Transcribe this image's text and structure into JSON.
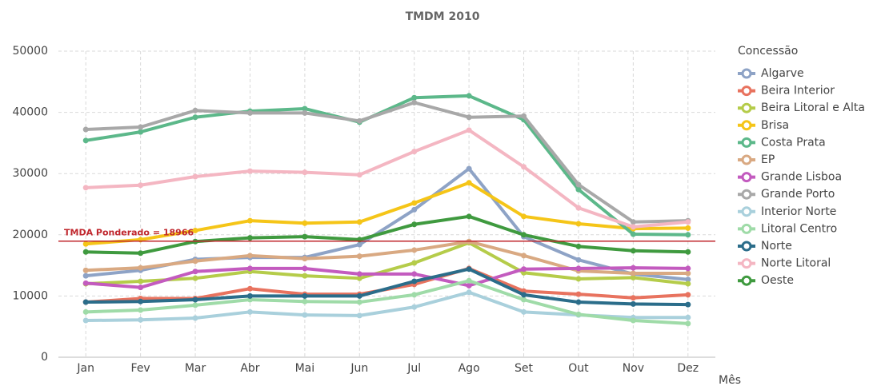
{
  "chart_data": {
    "type": "line",
    "title": "TMDM 2010",
    "x_label": "Mês",
    "legend_title": "Concessão",
    "categories": [
      "Jan",
      "Fev",
      "Mar",
      "Abr",
      "Mai",
      "Jun",
      "Jul",
      "Ago",
      "Set",
      "Out",
      "Nov",
      "Dez"
    ],
    "ylim": [
      0,
      50000
    ],
    "yticks": [
      0,
      10000,
      20000,
      30000,
      40000,
      50000
    ],
    "grid": true,
    "legend": "right",
    "reference": {
      "value": 18966,
      "label": "TMDA Ponderado = 18966",
      "color": "#c0272d"
    },
    "series": [
      {
        "name": "Algarve",
        "color": "#8ea3c6",
        "values": [
          13300,
          14200,
          16000,
          16300,
          16300,
          18400,
          24100,
          30800,
          19700,
          15900,
          13600,
          12700
        ]
      },
      {
        "name": "Beira Interior",
        "color": "#e8735f",
        "values": [
          9000,
          9600,
          9600,
          11200,
          10300,
          10300,
          11900,
          14500,
          10800,
          10300,
          9700,
          10200
        ]
      },
      {
        "name": "Beira Litoral e Alta",
        "color": "#b5cc4a",
        "values": [
          12000,
          12400,
          12900,
          14000,
          13300,
          12900,
          15400,
          18700,
          13800,
          12800,
          13000,
          12000
        ]
      },
      {
        "name": "Brisa",
        "color": "#f5c518",
        "values": [
          18500,
          19200,
          20700,
          22300,
          21900,
          22100,
          25200,
          28500,
          23000,
          21800,
          21000,
          21100
        ]
      },
      {
        "name": "Costa Prata",
        "color": "#5cb88a",
        "values": [
          35400,
          36800,
          39200,
          40200,
          40600,
          38400,
          42400,
          42700,
          38800,
          27400,
          20100,
          20000
        ]
      },
      {
        "name": "EP",
        "color": "#d9a982",
        "values": [
          14200,
          14600,
          15700,
          16600,
          16100,
          16500,
          17500,
          18900,
          16600,
          14100,
          13700,
          13700
        ]
      },
      {
        "name": "Grande Lisboa",
        "color": "#c35bbf",
        "values": [
          12100,
          11400,
          14000,
          14500,
          14500,
          13600,
          13600,
          11700,
          14400,
          14500,
          14600,
          14500
        ]
      },
      {
        "name": "Grande Porto",
        "color": "#a8a8a8",
        "values": [
          37200,
          37600,
          40300,
          39900,
          39900,
          38600,
          41600,
          39200,
          39400,
          28200,
          22100,
          22300
        ]
      },
      {
        "name": "Interior Norte",
        "color": "#a9d0dc",
        "values": [
          6000,
          6100,
          6400,
          7400,
          6900,
          6800,
          8200,
          10600,
          7400,
          6900,
          6500,
          6500
        ]
      },
      {
        "name": "Litoral Centro",
        "color": "#9fdba8",
        "values": [
          7400,
          7700,
          8500,
          9400,
          9100,
          9000,
          10200,
          12500,
          9400,
          7000,
          6000,
          5500
        ]
      },
      {
        "name": "Norte",
        "color": "#2b6d8a",
        "values": [
          9000,
          9100,
          9400,
          10000,
          10000,
          10000,
          12400,
          14400,
          10200,
          9000,
          8700,
          8600
        ]
      },
      {
        "name": "Norte Litoral",
        "color": "#f4b6c2",
        "values": [
          27700,
          28100,
          29500,
          30400,
          30200,
          29800,
          33600,
          37100,
          31100,
          24400,
          21300,
          22100
        ]
      },
      {
        "name": "Oeste",
        "color": "#3f9a3f",
        "values": [
          17200,
          17000,
          18900,
          19500,
          19700,
          19200,
          21700,
          23000,
          20000,
          18100,
          17400,
          17200
        ]
      }
    ]
  }
}
